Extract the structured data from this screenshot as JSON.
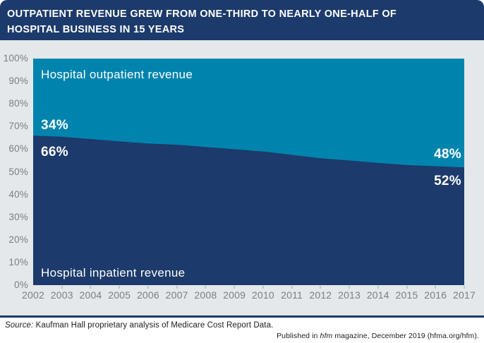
{
  "header": {
    "title_line1": "OUTPATIENT REVENUE GREW FROM ONE-THIRD TO NEARLY ONE-HALF OF",
    "title_line2": "HOSPITAL BUSINESS IN 15 YEARS"
  },
  "chart_data": {
    "type": "area",
    "stacked": true,
    "x": [
      2002,
      2003,
      2004,
      2005,
      2006,
      2007,
      2008,
      2009,
      2010,
      2011,
      2012,
      2013,
      2014,
      2015,
      2016,
      2017
    ],
    "series": [
      {
        "name": "Hospital outpatient revenue",
        "color": "#0084ae",
        "values": [
          34,
          34.5,
          35.5,
          36.5,
          37.5,
          38,
          39,
          40,
          41,
          42.5,
          44,
          45,
          46,
          47,
          47.5,
          48
        ]
      },
      {
        "name": "Hospital inpatient revenue",
        "color": "#1c3a6b",
        "values": [
          66,
          65.5,
          64.5,
          63.5,
          62.5,
          62,
          61,
          60,
          59,
          57.5,
          56,
          55,
          54,
          53,
          52.5,
          52
        ]
      }
    ],
    "y_ticks": [
      "100%",
      "90%",
      "80%",
      "70%",
      "60%",
      "50%",
      "40%",
      "30%",
      "20%",
      "10%",
      "0%"
    ],
    "ylim": [
      0,
      100
    ],
    "grid": false,
    "legend": "labels drawn inside areas"
  },
  "labels": {
    "outpatient_area": "Hospital outpatient revenue",
    "inpatient_area": "Hospital inpatient revenue",
    "outpatient_start": "34%",
    "inpatient_start": "66%",
    "outpatient_end": "48%",
    "inpatient_end": "52%"
  },
  "footer": {
    "source_label": "Source:",
    "source_text": " Kaufman Hall proprietary analysis of Medicare Cost Report Data.",
    "published_pre": "Published in ",
    "published_italic": "hfm",
    "published_post": " magazine, December 2019 (hfma.org/hfm)."
  },
  "colors": {
    "navy": "#1c3a6b",
    "teal": "#0084ae",
    "panel_bg": "#e4e8ea",
    "axis_text": "#7b7e82"
  }
}
